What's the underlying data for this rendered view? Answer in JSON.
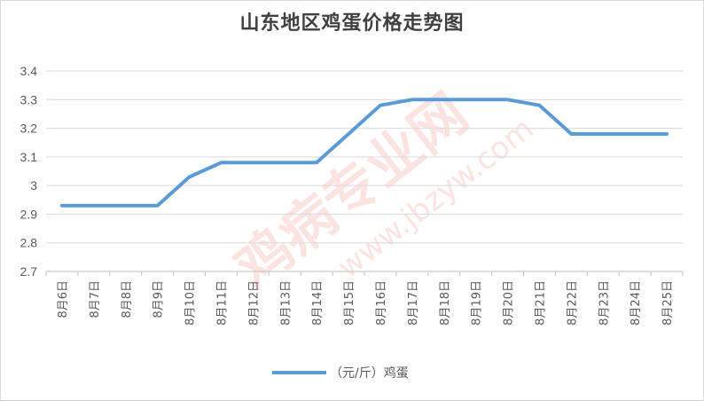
{
  "chart_data": {
    "type": "line",
    "title": "山东地区鸡蛋价格走势图",
    "xlabel": "",
    "ylabel": "",
    "categories": [
      "8月6日",
      "8月7日",
      "8月8日",
      "8月9日",
      "8月10日",
      "8月11日",
      "8月12日",
      "8月13日",
      "8月14日",
      "8月15日",
      "8月16日",
      "8月17日",
      "8月18日",
      "8月19日",
      "8月20日",
      "8月21日",
      "8月22日",
      "8月23日",
      "8月24日",
      "8月25日"
    ],
    "series": [
      {
        "name": "（元/斤）鸡蛋",
        "color": "#5b9bd5",
        "values": [
          2.93,
          2.93,
          2.93,
          2.93,
          3.03,
          3.08,
          3.08,
          3.08,
          3.08,
          3.18,
          3.28,
          3.3,
          3.3,
          3.3,
          3.3,
          3.28,
          3.18,
          3.18,
          3.18,
          3.18
        ]
      }
    ],
    "yticks": [
      "2.7",
      "2.8",
      "2.9",
      "3",
      "3.1",
      "3.2",
      "3.3",
      "3.4"
    ],
    "ylim": [
      2.7,
      3.4
    ],
    "grid": true,
    "legend_position": "bottom"
  },
  "watermark": {
    "text": "鸡病专业网",
    "url": "www.jbzyw.com"
  }
}
